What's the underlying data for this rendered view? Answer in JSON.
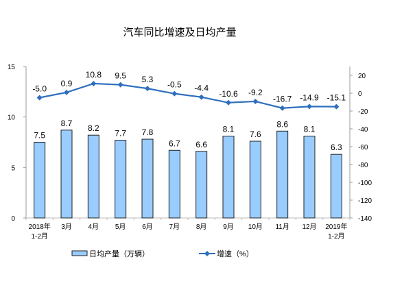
{
  "chart_data": {
    "type": "bar+line",
    "title": "汽车同比增速及日均产量",
    "categories": [
      [
        "2018年",
        "1-2月"
      ],
      [
        "3月"
      ],
      [
        "4月"
      ],
      [
        "5月"
      ],
      [
        "6月"
      ],
      [
        "7月"
      ],
      [
        "8月"
      ],
      [
        "9月"
      ],
      [
        "10月"
      ],
      [
        "11月"
      ],
      [
        "12月"
      ],
      [
        "2019年",
        "1-2月"
      ]
    ],
    "series": [
      {
        "name": "日均产量（万辆）",
        "type": "bar",
        "axis": "left",
        "color": "#99ccff",
        "values": [
          7.5,
          8.7,
          8.2,
          7.7,
          7.8,
          6.7,
          6.6,
          8.1,
          7.6,
          8.6,
          8.1,
          6.3
        ],
        "labels": [
          "7.5",
          "8.7",
          "8.2",
          "7.7",
          "7.8",
          "6.7",
          "6.6",
          "8.1",
          "7.6",
          "8.6",
          "8.1",
          "6.3"
        ]
      },
      {
        "name": "增速（%）",
        "type": "line",
        "axis": "right",
        "color": "#2e6fbd",
        "values": [
          -5.0,
          0.9,
          10.8,
          9.5,
          5.3,
          -0.5,
          -4.4,
          -10.6,
          -9.2,
          -16.7,
          -14.9,
          -15.1
        ],
        "labels": [
          "-5.0",
          "0.9",
          "10.8",
          "9.5",
          "5.3",
          "-0.5",
          "-4.4",
          "-10.6",
          "-9.2",
          "-16.7",
          "-14.9",
          "-15.1"
        ]
      }
    ],
    "left_axis": {
      "ylim": [
        0,
        15
      ],
      "ticks": [
        "0",
        "5",
        "10",
        "15"
      ],
      "tick_values": [
        0,
        5,
        10,
        15
      ]
    },
    "right_axis": {
      "ylim": [
        -140,
        30
      ],
      "ticks": [
        "20",
        "0",
        "-20",
        "-40",
        "-60",
        "-80",
        "-100",
        "-120",
        "-140"
      ],
      "tick_values": [
        20,
        0,
        -20,
        -40,
        -60,
        -80,
        -100,
        -120,
        -140
      ]
    },
    "legend_position": "bottom",
    "grid": false
  }
}
